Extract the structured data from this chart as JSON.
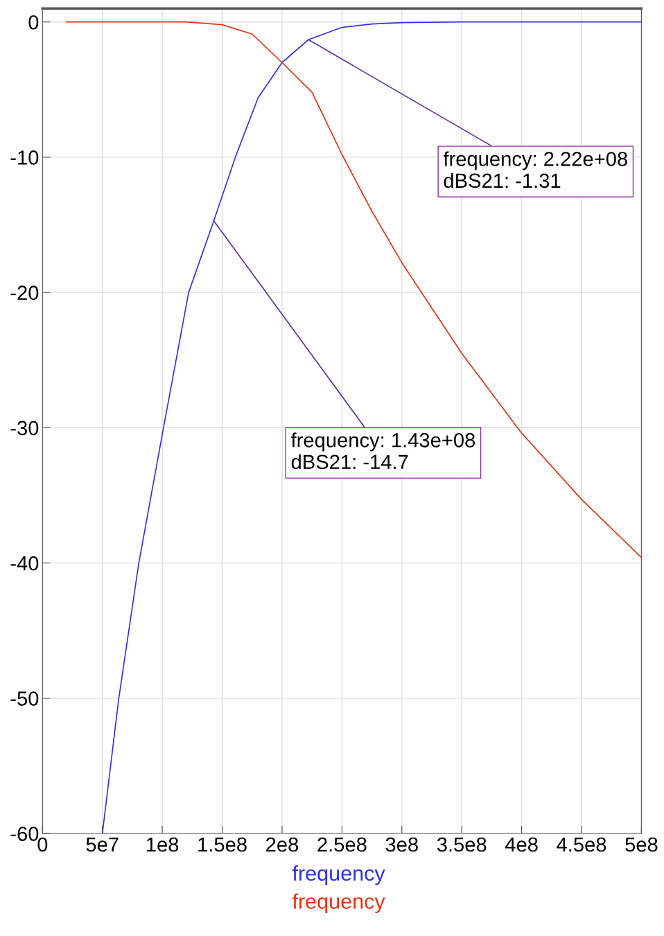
{
  "chart_data": {
    "type": "line",
    "x": [
      50000000.0,
      63700000.0,
      80400000.0,
      101000000.0,
      122000000.0,
      143000000.0,
      161000000.0,
      180000000.0,
      200000000.0,
      222000000.0,
      250000000.0,
      275000000.0,
      300000000.0,
      350000000.0,
      400000000.0,
      450000000.0,
      500000000.0
    ],
    "series": [
      {
        "name": "frequency",
        "color": "#3030f0",
        "values": [
          -60,
          -50,
          -40,
          -30,
          -20,
          -14.7,
          -10,
          -5.6,
          -3,
          -1.31,
          -0.4,
          -0.15,
          -0.05,
          0,
          0,
          0,
          0
        ]
      },
      {
        "name": "frequency",
        "color": "#f03010",
        "x": [
          20000000.0,
          50000000.0,
          100000000.0,
          120000000.0,
          150000000.0,
          175000000.0,
          200000000.0,
          225000000.0,
          250000000.0,
          275000000.0,
          300000000.0,
          350000000.0,
          400000000.0,
          450000000.0,
          500000000.0
        ],
        "values": [
          0,
          0,
          0,
          0,
          -0.2,
          -0.9,
          -3,
          -5.2,
          -9.8,
          -14,
          -17.8,
          -24.5,
          -30.4,
          -35.3,
          -39.6
        ]
      }
    ],
    "xlim": [
      0,
      500000000.0
    ],
    "xticks": [
      {
        "value": 0,
        "label": "0"
      },
      {
        "value": 50000000.0,
        "label": "5e7"
      },
      {
        "value": 100000000.0,
        "label": "1e8"
      },
      {
        "value": 150000000.0,
        "label": "1.5e8"
      },
      {
        "value": 200000000.0,
        "label": "2e8"
      },
      {
        "value": 250000000.0,
        "label": "2.5e8"
      },
      {
        "value": 300000000.0,
        "label": "3e8"
      },
      {
        "value": 350000000.0,
        "label": "3.5e8"
      },
      {
        "value": 400000000.0,
        "label": "4e8"
      },
      {
        "value": 450000000.0,
        "label": "4.5e8"
      },
      {
        "value": 500000000.0,
        "label": "5e8"
      }
    ],
    "ylim": [
      -60,
      1
    ],
    "yticks": [
      0,
      -10,
      -20,
      -30,
      -40,
      -50,
      -60
    ],
    "grid": true,
    "legend": "bottom",
    "annotations": [
      {
        "text": "frequency: 2.22e+08\ndBS21: -1.31",
        "x": 222000000.0,
        "y": -1.31
      },
      {
        "text": "frequency: 1.43e+08\ndBS21: -14.7",
        "x": 143000000.0,
        "y": -14.7
      }
    ]
  }
}
